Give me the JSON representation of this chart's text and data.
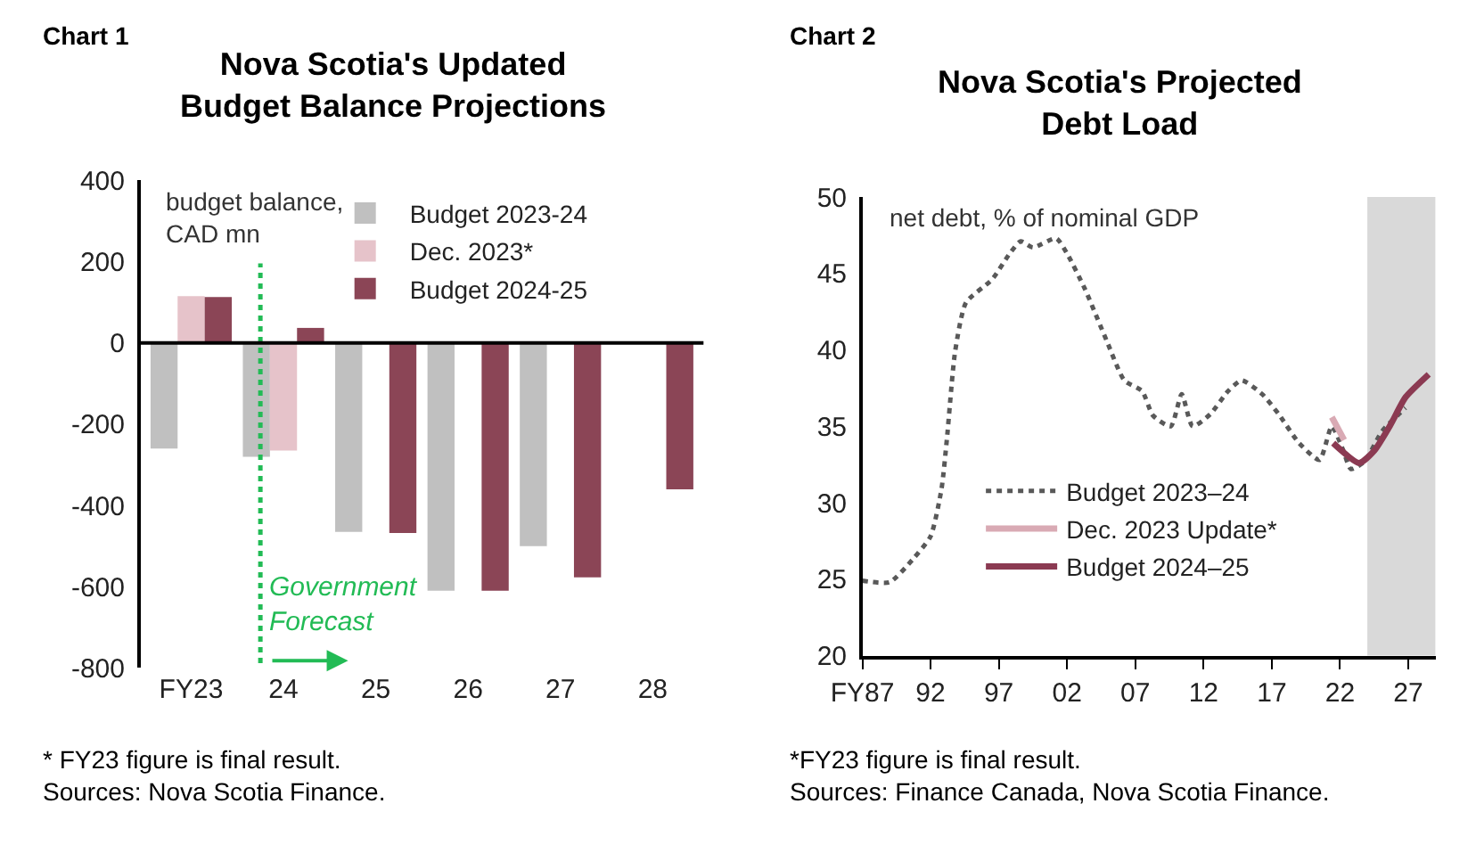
{
  "chart_data": [
    {
      "type": "bar",
      "title": "Nova Scotia's Updated\nBudget Balance Projections",
      "ylabel": "budget balance,\nCAD mn",
      "categories": [
        "FY23",
        "24",
        "25",
        "26",
        "27",
        "28"
      ],
      "series": [
        {
          "name": "Budget 2023-24",
          "color": "#c0c0c0",
          "values": [
            -260,
            -280,
            -465,
            -610,
            -500,
            null
          ]
        },
        {
          "name": "Dec. 2023*",
          "color": "#e6c3ca",
          "values": [
            115,
            -265,
            null,
            null,
            null,
            null
          ]
        },
        {
          "name": "Budget 2024-25",
          "color": "#8b4556",
          "values": [
            113,
            37,
            -468,
            -610,
            -577,
            -360
          ]
        }
      ],
      "ylim": [
        -800,
        400
      ],
      "yticks": [
        -800,
        -600,
        -400,
        -200,
        0,
        200,
        400
      ],
      "grid": false,
      "legend": "top right",
      "ref_lines": [
        {
          "axis": "x",
          "value": "24",
          "color": "#22bb55",
          "line_style": "dotted"
        },
        {
          "axis": "y",
          "value": 0,
          "color": "#000000",
          "line_style": "solid"
        }
      ],
      "annotations": [
        "Chart 1",
        "Government\nForecast",
        "* FY23 figure is final result.\nSources: Nova Scotia Finance."
      ]
    },
    {
      "type": "line",
      "title": "Nova Scotia's Projected\nDebt Load",
      "ylabel": "net debt, % of nominal GDP",
      "series": [
        {
          "name": "Budget 2023–24",
          "color": "#595959",
          "line_style": "dotted",
          "x": [
            1987,
            1989,
            1990.7,
            1992,
            1992.8,
            1993.2,
            1993.8,
            1994.6,
            1996.5,
            1997.8,
            1998.6,
            1999.5,
            2001.2,
            2002,
            2003.3,
            2004.9,
            2006.2,
            2007.5,
            2008.3,
            2009.6,
            2010.4,
            2011.2,
            2012.5,
            2013.8,
            2014.8,
            2016.3,
            2017.5,
            2019,
            2020.5,
            2021.4,
            2022.2,
            2022.8,
            2023.8,
            2025.1,
            2026.8
          ],
          "values": [
            24.9,
            24.8,
            26.3,
            27.8,
            30.9,
            34.2,
            39.9,
            43.1,
            44.6,
            46.3,
            47.1,
            46.7,
            47.3,
            46.3,
            44,
            40.6,
            38,
            37.3,
            35.7,
            35,
            37.1,
            35,
            35.8,
            37.3,
            38,
            37.1,
            35.8,
            33.9,
            32.8,
            35,
            33.5,
            32.2,
            32.7,
            34.7,
            36.2
          ]
        },
        {
          "name": "Dec. 2023 Update*",
          "color": "#d9aab4",
          "line_style": "solid",
          "x": [
            2021.4,
            2022.3
          ],
          "values": [
            35.6,
            34.1
          ]
        },
        {
          "name": "Budget 2024–25",
          "color": "#8b3a52",
          "line_style": "solid",
          "x": [
            2021.5,
            2023.4,
            2024.5,
            2025.7,
            2026.8,
            2028.5
          ],
          "values": [
            33.9,
            32.6,
            33.4,
            35.1,
            36.9,
            38.4
          ]
        }
      ],
      "xlim": [
        1987,
        2029
      ],
      "xticks": [
        {
          "value": 1987,
          "label": "FY87"
        },
        {
          "value": 1992,
          "label": "92"
        },
        {
          "value": 1997,
          "label": "97"
        },
        {
          "value": 2002,
          "label": "02"
        },
        {
          "value": 2007,
          "label": "07"
        },
        {
          "value": 2012,
          "label": "12"
        },
        {
          "value": 2017,
          "label": "17"
        },
        {
          "value": 2022,
          "label": "22"
        },
        {
          "value": 2027,
          "label": "27"
        }
      ],
      "ylim": [
        20,
        50
      ],
      "yticks": [
        20,
        25,
        30,
        35,
        40,
        45,
        50
      ],
      "grid": false,
      "legend": "bottom left",
      "bands": [
        {
          "axis": "x",
          "from": 2024,
          "to": 2029,
          "color": "#d9d9d9"
        }
      ],
      "annotations": [
        "Chart 2",
        "*FY23 figure is final result.\nSources: Finance Canada, Nova Scotia Finance."
      ]
    }
  ]
}
